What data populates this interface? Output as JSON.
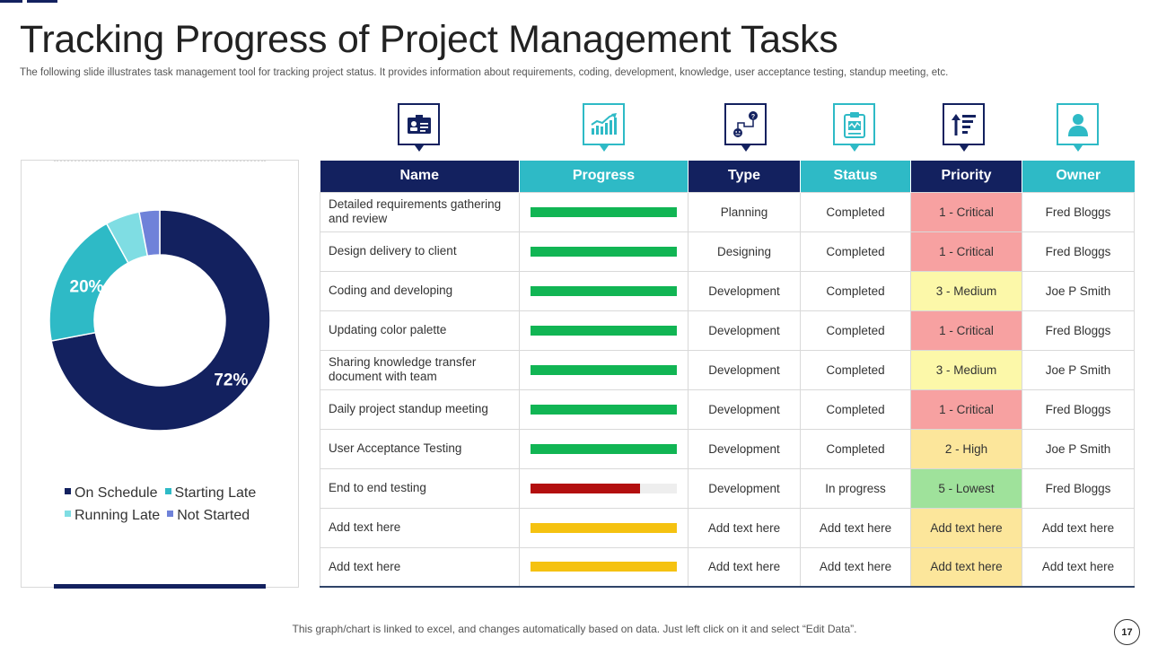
{
  "slide": {
    "title": "Tracking Progress of Project Management Tasks",
    "subtitle": "The following slide illustrates task management tool for tracking project status. It provides information about requirements, coding, development, knowledge, user acceptance testing, standup meeting, etc.",
    "footer": "This graph/chart is linked to excel,  and changes automatically based on data. Just left click on it and select “Edit Data”.",
    "page_number": "17"
  },
  "colors": {
    "navy": "#13215f",
    "teal": "#2ebac6",
    "light_teal": "#7fdde3",
    "lavender": "#6f82d9",
    "progress_green": "#11b554",
    "progress_red": "#b30f0f",
    "progress_yellow": "#f5c211",
    "critical": "#f7a1a1",
    "medium": "#fcf8a9",
    "high": "#fce69b",
    "lowest": "#9fe29b"
  },
  "chart_data": {
    "type": "pie",
    "donut": true,
    "categories": [
      "On Schedule",
      "Starting Late",
      "Running Late",
      "Not Started"
    ],
    "values": [
      72,
      20,
      5,
      3
    ],
    "colors": [
      "#13215f",
      "#2ebac6",
      "#7fdde3",
      "#6f82d9"
    ],
    "data_labels": [
      "72%",
      "20%",
      "",
      ""
    ],
    "legend": "bottom"
  },
  "legend": [
    {
      "label": "On Schedule",
      "color": "#13215f"
    },
    {
      "label": "Starting Late",
      "color": "#2ebac6"
    },
    {
      "label": "Running Late",
      "color": "#7fdde3"
    },
    {
      "label": "Not Started",
      "color": "#6f82d9"
    }
  ],
  "header_icons": [
    {
      "name": "id-card-icon",
      "style": "navy"
    },
    {
      "name": "growth-chart-icon",
      "style": "teal"
    },
    {
      "name": "workflow-icon",
      "style": "navy"
    },
    {
      "name": "clipboard-icon",
      "style": "teal"
    },
    {
      "name": "sort-priority-icon",
      "style": "navy"
    },
    {
      "name": "user-icon",
      "style": "teal"
    }
  ],
  "table": {
    "columns": [
      "Name",
      "Progress",
      "Type",
      "Status",
      "Priority",
      "Owner"
    ],
    "rows": [
      {
        "name": "Detailed requirements gathering and review",
        "progress": 1.0,
        "progress_color": "#11b554",
        "type": "Planning",
        "status": "Completed",
        "priority": "1 -  Critical",
        "priority_color": "#f7a1a1",
        "owner": "Fred Bloggs"
      },
      {
        "name": "Design delivery  to client",
        "progress": 1.0,
        "progress_color": "#11b554",
        "type": "Designing",
        "status": "Completed",
        "priority": "1 -  Critical",
        "priority_color": "#f7a1a1",
        "owner": "Fred Bloggs"
      },
      {
        "name": "Coding and developing",
        "progress": 1.0,
        "progress_color": "#11b554",
        "type": "Development",
        "status": "Completed",
        "priority": "3 - Medium",
        "priority_color": "#fcf8a9",
        "owner": "Joe P Smith"
      },
      {
        "name": "Updating color palette",
        "progress": 1.0,
        "progress_color": "#11b554",
        "type": "Development",
        "status": "Completed",
        "priority": "1 -  Critical",
        "priority_color": "#f7a1a1",
        "owner": "Fred Bloggs"
      },
      {
        "name": "Sharing knowledge transfer document with team",
        "progress": 1.0,
        "progress_color": "#11b554",
        "type": "Development",
        "status": "Completed",
        "priority": "3 - Medium",
        "priority_color": "#fcf8a9",
        "owner": "Joe P Smith"
      },
      {
        "name": "Daily project standup meeting",
        "progress": 1.0,
        "progress_color": "#11b554",
        "type": "Development",
        "status": "Completed",
        "priority": "1 -  Critical",
        "priority_color": "#f7a1a1",
        "owner": "Fred Bloggs"
      },
      {
        "name": "User Acceptance Testing",
        "progress": 1.0,
        "progress_color": "#11b554",
        "type": "Development",
        "status": "Completed",
        "priority": "2 -  High",
        "priority_color": "#fce69b",
        "owner": "Joe P Smith"
      },
      {
        "name": "End to end testing",
        "progress": 0.75,
        "progress_color": "#b30f0f",
        "type": "Development",
        "status": "In progress",
        "priority": "5 -  Lowest",
        "priority_color": "#9fe29b",
        "owner": "Fred Bloggs"
      },
      {
        "name": "Add text here",
        "progress": 1.0,
        "progress_color": "#f5c211",
        "type": "Add text here",
        "status": "Add text here",
        "priority": "Add text here",
        "priority_color": "#fce69b",
        "owner": "Add text here"
      },
      {
        "name": "Add text here",
        "progress": 1.0,
        "progress_color": "#f5c211",
        "type": "Add text here",
        "status": "Add text here",
        "priority": "Add text here",
        "priority_color": "#fce69b",
        "owner": "Add text here"
      }
    ]
  }
}
